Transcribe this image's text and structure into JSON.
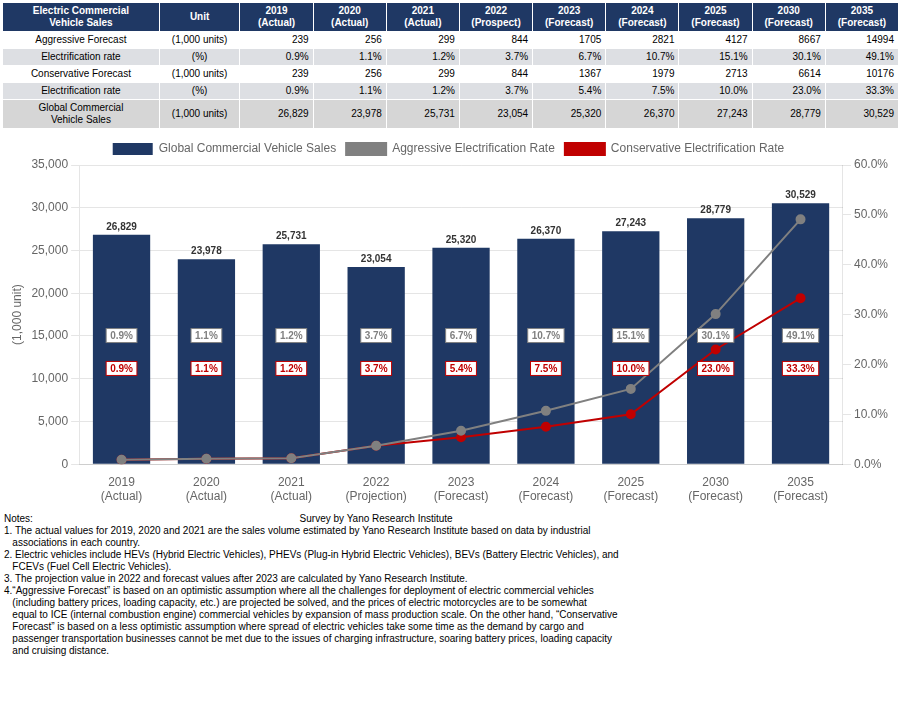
{
  "chart_data": [
    {
      "type": "table",
      "color": "#1F3864",
      "columns": [
        "Electric Commercial\nVehicle Sales",
        "Unit",
        "2019\n(Actual)",
        "2020\n(Actual)",
        "2021\n(Actual)",
        "2022\n(Prospect)",
        "2023\n(Forecast)",
        "2024\n(Forecast)",
        "2025\n(Forecast)",
        "2030\n(Forecast)",
        "2035\n(Forecast)"
      ],
      "rows": [
        {
          "name": "Aggressive Forecast",
          "unit": "(1,000 units)",
          "values": [
            239,
            256,
            299,
            844,
            1705,
            2821,
            4127,
            8667,
            14994
          ]
        },
        {
          "name": "Electrification rate",
          "unit": "(%)",
          "color": "#DDDFE3",
          "values": [
            0.9,
            1.1,
            1.2,
            3.7,
            6.7,
            10.7,
            15.1,
            30.1,
            49.1
          ],
          "value_labels": [
            "0.9%",
            "1.1%",
            "1.2%",
            "3.7%",
            "6.7%",
            "10.7%",
            "15.1%",
            "30.1%",
            "49.1%"
          ]
        },
        {
          "name": "Conservative Forecast",
          "unit": "(1,000 units)",
          "values": [
            239,
            256,
            299,
            844,
            1367,
            1979,
            2713,
            6614,
            10176
          ]
        },
        {
          "name": "Electrification rate",
          "unit": "(%)",
          "color": "#DDDFE3",
          "values": [
            0.9,
            1.1,
            1.2,
            3.7,
            5.4,
            7.5,
            10.0,
            23.0,
            33.3
          ],
          "value_labels": [
            "0.9%",
            "1.1%",
            "1.2%",
            "3.7%",
            "5.4%",
            "7.5%",
            "10.0%",
            "23.0%",
            "33.3%"
          ]
        },
        {
          "name": "Global Commercial\nVehicle Sales",
          "unit": "(1,000 units)",
          "color": "#D6D6D6",
          "values": [
            26829,
            23978,
            25731,
            23054,
            25320,
            26370,
            27243,
            28779,
            30529
          ],
          "value_labels": [
            "26,829",
            "23,978",
            "25,731",
            "23,054",
            "25,320",
            "26,370",
            "27,243",
            "28,779",
            "30,529"
          ]
        }
      ]
    },
    {
      "type": "bar",
      "categories": [
        "2019\n(Actual)",
        "2020\n(Actual)",
        "2021\n(Actual)",
        "2022\n(Projection)",
        "2023\n(Forecast)",
        "2024\n(Forecast)",
        "2025\n(Forecast)",
        "2030\n(Forecast)",
        "2035\n(Forecast)"
      ],
      "ylabel": "(1,000 unit)",
      "ylim": [
        0,
        35000
      ],
      "yticks": [
        0,
        {
          "value": 5000,
          "label": "5,000"
        },
        {
          "value": 10000,
          "label": "10,000"
        },
        {
          "value": 15000,
          "label": "15,000"
        },
        {
          "value": 20000,
          "label": "20,000"
        },
        {
          "value": 25000,
          "label": "25,000"
        },
        {
          "value": 30000,
          "label": "30,000"
        },
        {
          "value": 35000,
          "label": "35,000"
        }
      ],
      "y2lim": [
        0,
        60
      ],
      "y2ticks": [
        {
          "value": 0,
          "label": "0.0%"
        },
        {
          "value": 10,
          "label": "10.0%"
        },
        {
          "value": 20,
          "label": "20.0%"
        },
        {
          "value": 30,
          "label": "30.0%"
        },
        {
          "value": 40,
          "label": "40.0%"
        },
        {
          "value": 50,
          "label": "50.0%"
        },
        {
          "value": 60,
          "label": "60.0%"
        }
      ],
      "grid": true,
      "legend": "top",
      "data_labels": true,
      "series": [
        {
          "name": "Global Commercial Vehicle Sales",
          "type": "bar",
          "color": "#1F3864",
          "values": [
            26829,
            23978,
            25731,
            23054,
            25320,
            26370,
            27243,
            28779,
            30529
          ],
          "value_labels": [
            "26,829",
            "23,978",
            "25,731",
            "23,054",
            "25,320",
            "26,370",
            "27,243",
            "28,779",
            "30,529"
          ]
        },
        {
          "name": "Aggressive Electrification Rate",
          "type": "line",
          "axis": "y2",
          "color": "#808080",
          "marker": "circle",
          "values": [
            0.9,
            1.1,
            1.2,
            3.7,
            6.7,
            10.7,
            15.1,
            30.1,
            49.1
          ],
          "value_labels": [
            "0.9%",
            "1.1%",
            "1.2%",
            "3.7%",
            "6.7%",
            "10.7%",
            "15.1%",
            "30.1%",
            "49.1%"
          ]
        },
        {
          "name": "Conservative Electrification Rate",
          "type": "line",
          "axis": "y2",
          "color": "#C00000",
          "marker": "circle",
          "values": [
            0.9,
            1.1,
            1.2,
            3.7,
            5.4,
            7.5,
            10.0,
            23.0,
            33.3
          ],
          "value_labels": [
            "0.9%",
            "1.1%",
            "1.2%",
            "3.7%",
            "5.4%",
            "7.5%",
            "10.0%",
            "23.0%",
            "33.3%"
          ]
        }
      ],
      "annotations": [
        "Notes:                                                                                                Survey by Yano Research Institute",
        "1. The actual values for 2019, 2020 and 2021 are the sales volume estimated by Yano Research Institute based on data by industrial",
        "   associations in each country.",
        "2. Electric vehicles include HEVs (Hybrid Electric Vehicles), PHEVs (Plug-in Hybrid Electric Vehicles), BEVs (Battery Electric Vehicles), and",
        "   FCEVs (Fuel Cell Electric Vehicles).",
        "3. The projection value in 2022 and forecast values after 2023 are calculated by Yano Research Institute.",
        "4.“Aggressive Forecast” is based on an optimistic assumption where all the challenges for deployment of electric commercial vehicles",
        "   (including battery prices, loading capacity, etc.) are projected be solved, and the prices of electric motorcycles are to be somewhat",
        "   equal to ICE (internal combustion engine) commercial vehicles by expansion of mass production scale. On the other hand, “Conservative",
        "   Forecast” is based on a less optimistic assumption where spread of electric vehicles take some time as the demand by cargo and",
        "   passenger transportation businesses cannot be met due to the issues of charging infrastructure, soaring battery prices, loading capacity",
        "   and cruising distance."
      ]
    }
  ]
}
